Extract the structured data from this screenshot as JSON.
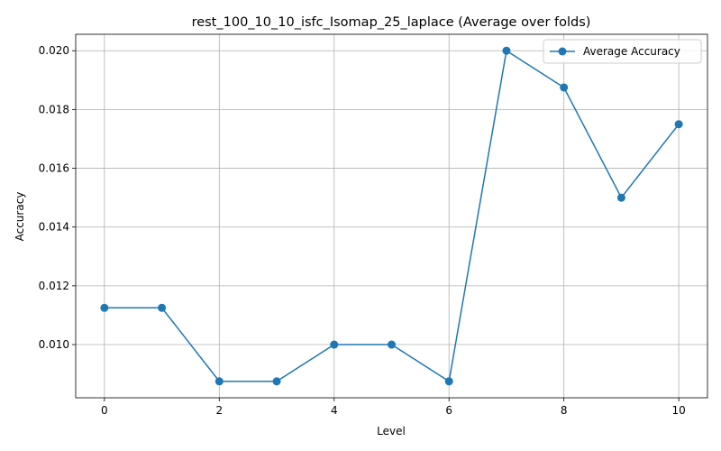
{
  "chart_data": {
    "type": "line",
    "title": "rest_100_10_10_isfc_Isomap_25_laplace (Average over folds)",
    "xlabel": "Level",
    "ylabel": "Accuracy",
    "x": [
      0,
      1,
      2,
      3,
      4,
      5,
      6,
      7,
      8,
      9,
      10
    ],
    "series": [
      {
        "name": "Average Accuracy",
        "values": [
          0.01125,
          0.01125,
          0.00875,
          0.00875,
          0.01,
          0.01,
          0.00875,
          0.02,
          0.01875,
          0.015,
          0.0175
        ],
        "color": "#1f77b4",
        "marker": "circle"
      }
    ],
    "xlim": [
      -0.5,
      10.5
    ],
    "ylim": [
      0.00819,
      0.02056
    ],
    "xticks": [
      "0",
      "2",
      "4",
      "6",
      "8",
      "10"
    ],
    "yticks": [
      "0.010",
      "0.012",
      "0.014",
      "0.016",
      "0.018",
      "0.020"
    ],
    "grid": true,
    "legend_position": "top-right"
  }
}
